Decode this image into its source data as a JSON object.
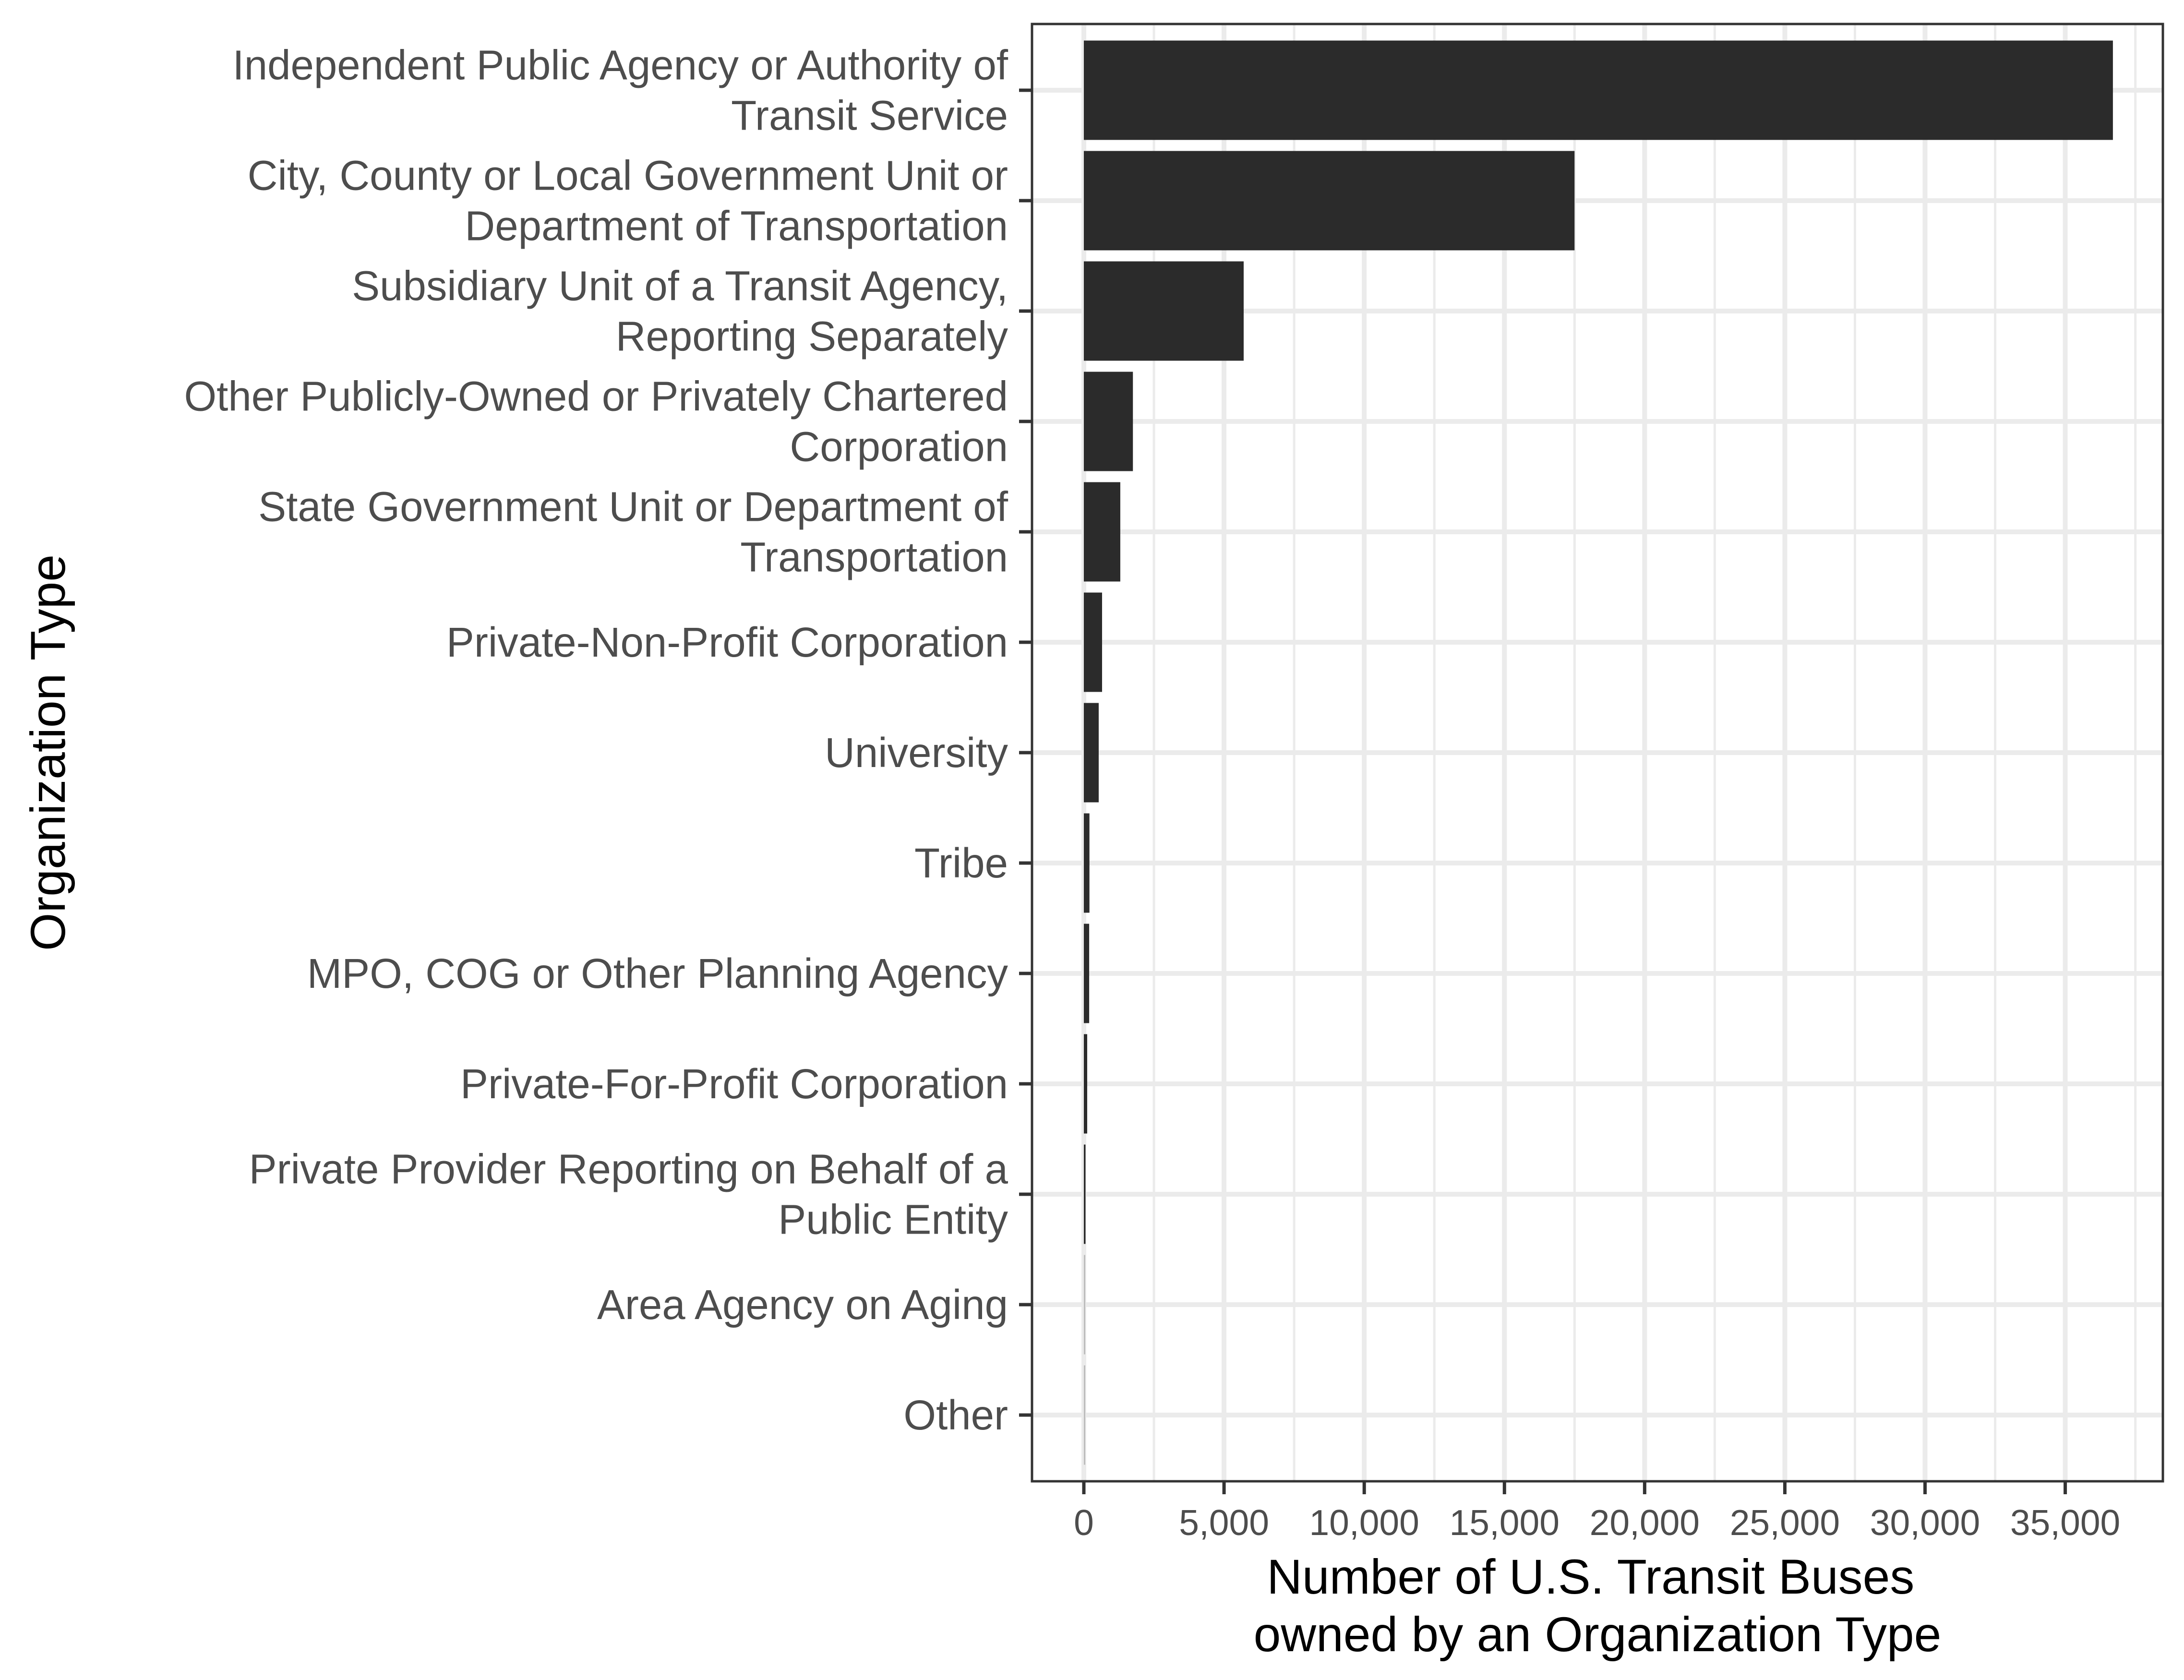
{
  "chart_data": {
    "type": "bar",
    "orientation": "horizontal",
    "xlabel": [
      "Number of U.S. Transit Buses",
      "owned by an Organization Type"
    ],
    "ylabel": "Organization Type",
    "xlim": [
      -1850,
      38200
    ],
    "x_ticks": [
      0,
      5000,
      10000,
      15000,
      20000,
      25000,
      30000,
      35000
    ],
    "x_tick_labels": [
      "0",
      "5,000",
      "10,000",
      "15,000",
      "20,000",
      "25,000",
      "30,000",
      "35,000"
    ],
    "grid": true,
    "bar_color": "#2b2b2b",
    "categories": [
      [
        "Independent Public Agency or Authority of",
        "Transit Service"
      ],
      [
        "City, County or Local Government Unit or",
        "Department of Transportation"
      ],
      [
        "Subsidiary Unit of a Transit Agency,",
        "Reporting Separately"
      ],
      [
        "Other Publicly-Owned or Privately Chartered",
        "Corporation"
      ],
      [
        "State Government Unit or Department of",
        "Transportation"
      ],
      [
        "Private-Non-Profit Corporation"
      ],
      [
        "University"
      ],
      [
        "Tribe"
      ],
      [
        "MPO, COG or Other Planning Agency"
      ],
      [
        "Private-For-Profit Corporation"
      ],
      [
        "Private Provider Reporting on Behalf of a",
        "Public Entity"
      ],
      [
        "Area Agency on Aging"
      ],
      [
        "Other"
      ]
    ],
    "values": [
      36700,
      17500,
      5700,
      1750,
      1300,
      650,
      530,
      200,
      190,
      120,
      60,
      15,
      10
    ]
  }
}
